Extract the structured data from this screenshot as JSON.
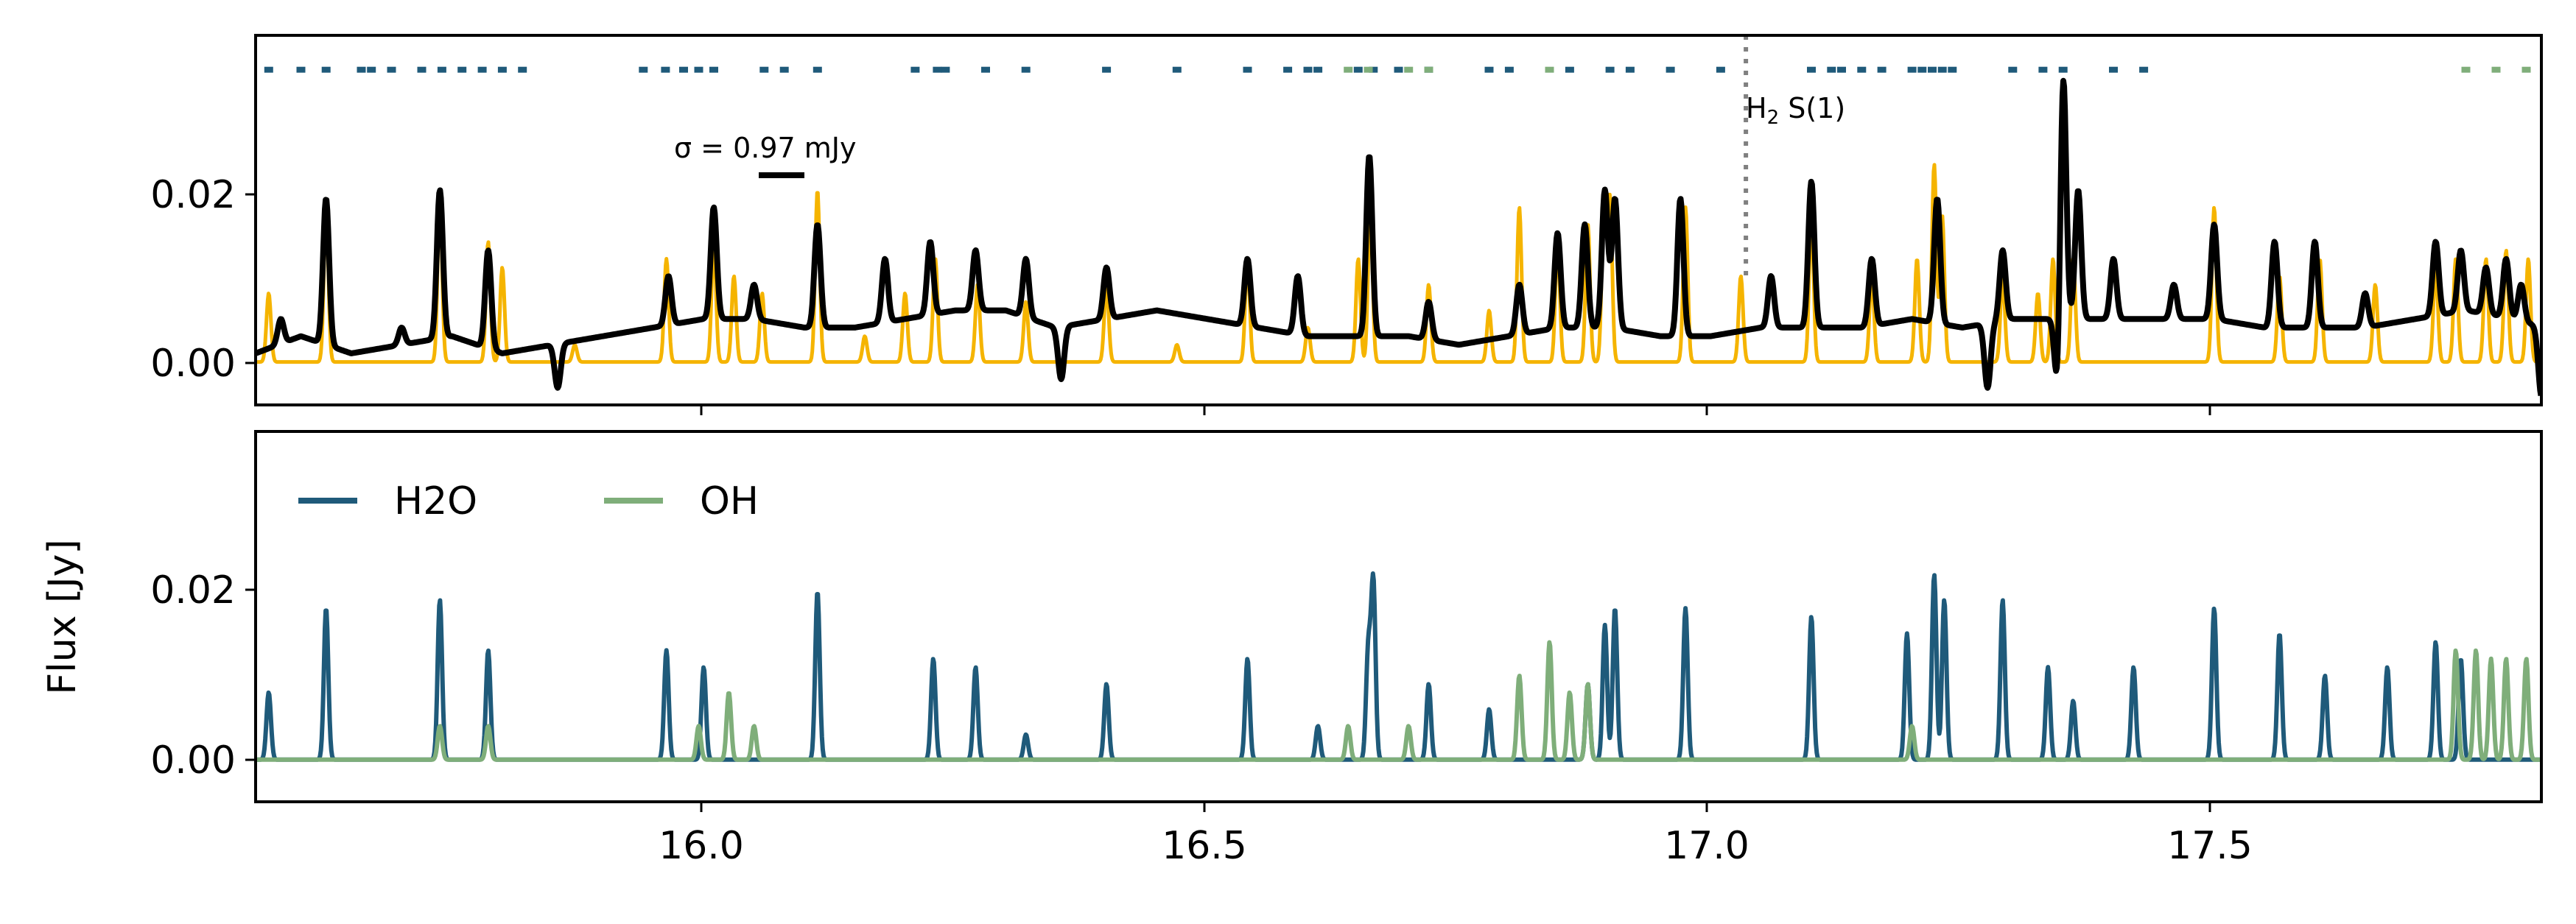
{
  "chart_data": [
    {
      "panel": "top",
      "type": "line",
      "xlim": [
        15.555,
        17.825
      ],
      "ylim": [
        -0.005,
        0.038
      ],
      "yticks": [
        0.0,
        0.02
      ],
      "ytick_labels": [
        "0.00",
        "0.02"
      ],
      "xticks": [
        16.0,
        16.5,
        17.0,
        17.5
      ],
      "grid": false,
      "series": [
        {
          "role": "model",
          "color": "#f5b400",
          "peaks": [
            [
              15.568,
              0.008
            ],
            [
              15.625,
              0.018
            ],
            [
              15.738,
              0.019
            ],
            [
              15.786,
              0.014
            ],
            [
              15.8,
              0.011
            ],
            [
              15.872,
              0.002
            ],
            [
              15.963,
              0.012
            ],
            [
              16.01,
              0.014
            ],
            [
              16.03,
              0.01
            ],
            [
              16.058,
              0.008
            ],
            [
              16.113,
              0.02
            ],
            [
              16.16,
              0.003
            ],
            [
              16.2,
              0.008
            ],
            [
              16.23,
              0.012
            ],
            [
              16.272,
              0.009
            ],
            [
              16.32,
              0.007
            ],
            [
              16.4,
              0.009
            ],
            [
              16.47,
              0.002
            ],
            [
              16.54,
              0.012
            ],
            [
              16.6,
              0.004
            ],
            [
              16.65,
              0.012
            ],
            [
              16.662,
              0.018
            ],
            [
              16.72,
              0.009
            ],
            [
              16.78,
              0.006
            ],
            [
              16.81,
              0.018
            ],
            [
              16.848,
              0.014
            ],
            [
              16.878,
              0.016
            ],
            [
              16.894,
              0.018
            ],
            [
              16.9,
              0.019
            ],
            [
              16.975,
              0.018
            ],
            [
              17.03,
              0.01
            ],
            [
              17.1,
              0.017
            ],
            [
              17.16,
              0.01
            ],
            [
              17.205,
              0.012
            ],
            [
              17.222,
              0.023
            ],
            [
              17.23,
              0.017
            ],
            [
              17.29,
              0.01
            ],
            [
              17.325,
              0.008
            ],
            [
              17.34,
              0.012
            ],
            [
              17.36,
              0.012
            ],
            [
              17.5,
              0.018
            ],
            [
              17.565,
              0.01
            ],
            [
              17.605,
              0.012
            ],
            [
              17.66,
              0.009
            ],
            [
              17.72,
              0.011
            ],
            [
              17.74,
              0.012
            ],
            [
              17.77,
              0.012
            ],
            [
              17.79,
              0.013
            ],
            [
              17.812,
              0.012
            ]
          ]
        },
        {
          "role": "data",
          "color": "#000000",
          "baseline": [
            [
              15.555,
              0.001
            ],
            [
              15.6,
              0.003
            ],
            [
              15.65,
              0.001
            ],
            [
              15.7,
              0.002
            ],
            [
              15.75,
              0.003
            ],
            [
              15.8,
              0.001
            ],
            [
              15.85,
              0.002
            ],
            [
              15.9,
              0.003
            ],
            [
              15.95,
              0.004
            ],
            [
              16.0,
              0.005
            ],
            [
              16.05,
              0.005
            ],
            [
              16.1,
              0.004
            ],
            [
              16.15,
              0.004
            ],
            [
              16.2,
              0.005
            ],
            [
              16.25,
              0.006
            ],
            [
              16.3,
              0.006
            ],
            [
              16.35,
              0.004
            ],
            [
              16.4,
              0.005
            ],
            [
              16.45,
              0.006
            ],
            [
              16.5,
              0.005
            ],
            [
              16.55,
              0.004
            ],
            [
              16.6,
              0.003
            ],
            [
              16.65,
              0.003
            ],
            [
              16.7,
              0.003
            ],
            [
              16.75,
              0.002
            ],
            [
              16.8,
              0.003
            ],
            [
              16.85,
              0.004
            ],
            [
              16.9,
              0.004
            ],
            [
              16.95,
              0.003
            ],
            [
              17.0,
              0.003
            ],
            [
              17.05,
              0.004
            ],
            [
              17.1,
              0.004
            ],
            [
              17.15,
              0.004
            ],
            [
              17.2,
              0.005
            ],
            [
              17.25,
              0.004
            ],
            [
              17.3,
              0.005
            ],
            [
              17.35,
              0.005
            ],
            [
              17.4,
              0.005
            ],
            [
              17.45,
              0.005
            ],
            [
              17.5,
              0.005
            ],
            [
              17.55,
              0.004
            ],
            [
              17.6,
              0.004
            ],
            [
              17.65,
              0.004
            ],
            [
              17.7,
              0.005
            ],
            [
              17.75,
              0.006
            ],
            [
              17.8,
              0.005
            ],
            [
              17.825,
              0.004
            ]
          ],
          "peaks": [
            [
              15.58,
              0.005
            ],
            [
              15.625,
              0.019
            ],
            [
              15.7,
              0.004
            ],
            [
              15.738,
              0.02
            ],
            [
              15.786,
              0.013
            ],
            [
              15.965,
              0.01
            ],
            [
              16.01,
              0.018
            ],
            [
              16.05,
              0.009
            ],
            [
              16.113,
              0.016
            ],
            [
              16.18,
              0.012
            ],
            [
              16.225,
              0.014
            ],
            [
              16.27,
              0.013
            ],
            [
              16.32,
              0.012
            ],
            [
              16.4,
              0.011
            ],
            [
              16.54,
              0.012
            ],
            [
              16.59,
              0.01
            ],
            [
              16.661,
              0.024
            ],
            [
              16.72,
              0.007
            ],
            [
              16.81,
              0.009
            ],
            [
              16.848,
              0.015
            ],
            [
              16.875,
              0.016
            ],
            [
              16.895,
              0.02
            ],
            [
              16.905,
              0.019
            ],
            [
              16.97,
              0.019
            ],
            [
              17.06,
              0.01
            ],
            [
              17.1,
              0.021
            ],
            [
              17.16,
              0.012
            ],
            [
              17.225,
              0.019
            ],
            [
              17.29,
              0.013
            ],
            [
              17.35,
              0.035
            ],
            [
              17.365,
              0.02
            ],
            [
              17.4,
              0.012
            ],
            [
              17.46,
              0.009
            ],
            [
              17.5,
              0.016
            ],
            [
              17.56,
              0.014
            ],
            [
              17.6,
              0.014
            ],
            [
              17.65,
              0.008
            ],
            [
              17.72,
              0.014
            ],
            [
              17.745,
              0.013
            ],
            [
              17.77,
              0.011
            ],
            [
              17.79,
              0.012
            ],
            [
              17.805,
              0.009
            ]
          ],
          "dips": [
            [
              15.855,
              -0.003
            ],
            [
              16.355,
              -0.002
            ],
            [
              17.275,
              -0.003
            ],
            [
              17.345,
              -0.005
            ],
            [
              17.825,
              -0.004
            ]
          ]
        }
      ],
      "line_markers": [
        {
          "name": "H2O",
          "color": "#1f5a7a",
          "y": 0.034,
          "x": [
            15.568,
            15.6,
            15.625,
            15.66,
            15.67,
            15.69,
            15.72,
            15.74,
            15.76,
            15.78,
            15.8,
            15.82,
            15.94,
            15.962,
            15.98,
            15.995,
            16.01,
            16.06,
            16.08,
            16.113,
            16.21,
            16.232,
            16.24,
            16.28,
            16.32,
            16.4,
            16.47,
            16.54,
            16.58,
            16.6,
            16.61,
            16.65,
            16.665,
            16.69,
            16.72,
            16.78,
            16.8,
            16.86,
            16.9,
            16.92,
            16.96,
            17.01,
            17.1,
            17.12,
            17.13,
            17.15,
            17.17,
            17.2,
            17.21,
            17.22,
            17.23,
            17.24,
            17.3,
            17.33,
            17.35,
            17.4,
            17.43
          ]
        },
        {
          "name": "OH",
          "color": "#7fae7a",
          "y": 0.034,
          "x": [
            16.64,
            16.66,
            16.7,
            16.72,
            16.84,
            17.75,
            17.78,
            17.81
          ]
        }
      ],
      "annotations": [
        {
          "text_main": "σ = 0.97 mJy",
          "x": 16.065,
          "y": 0.0225
        },
        {
          "text_main": "H",
          "subscript": "2",
          "text_after": " S(1)",
          "x": 17.04,
          "y": 0.0335
        }
      ],
      "vline": {
        "x": 17.035,
        "style": "dotted",
        "color": "#808080"
      }
    },
    {
      "panel": "bottom",
      "type": "line",
      "ylabel": "Flux [Jy]",
      "xlim": [
        15.555,
        17.825
      ],
      "ylim": [
        -0.005,
        0.039
      ],
      "yticks": [
        0.0,
        0.02
      ],
      "ytick_labels": [
        "0.00",
        "0.02"
      ],
      "xticks": [
        16.0,
        16.5,
        17.0,
        17.5
      ],
      "xtick_labels": [
        "16.0",
        "16.5",
        "17.0",
        "17.5"
      ],
      "legend": "upper left",
      "grid": false,
      "series": [
        {
          "name": "H2O",
          "color": "#1f5a7a",
          "peaks": [
            [
              15.568,
              0.008
            ],
            [
              15.625,
              0.018
            ],
            [
              15.738,
              0.019
            ],
            [
              15.786,
              0.013
            ],
            [
              15.963,
              0.013
            ],
            [
              16.0,
              0.011
            ],
            [
              16.113,
              0.02
            ],
            [
              16.228,
              0.012
            ],
            [
              16.27,
              0.011
            ],
            [
              16.32,
              0.003
            ],
            [
              16.4,
              0.009
            ],
            [
              16.54,
              0.012
            ],
            [
              16.61,
              0.004
            ],
            [
              16.66,
              0.013
            ],
            [
              16.665,
              0.021
            ],
            [
              16.72,
              0.009
            ],
            [
              16.78,
              0.006
            ],
            [
              16.878,
              0.009
            ],
            [
              16.895,
              0.016
            ],
            [
              16.905,
              0.018
            ],
            [
              16.975,
              0.018
            ],
            [
              17.1,
              0.017
            ],
            [
              17.195,
              0.015
            ],
            [
              17.222,
              0.022
            ],
            [
              17.232,
              0.019
            ],
            [
              17.29,
              0.019
            ],
            [
              17.335,
              0.011
            ],
            [
              17.36,
              0.007
            ],
            [
              17.42,
              0.011
            ],
            [
              17.5,
              0.018
            ],
            [
              17.565,
              0.015
            ],
            [
              17.61,
              0.01
            ],
            [
              17.672,
              0.011
            ],
            [
              17.72,
              0.014
            ],
            [
              17.745,
              0.012
            ]
          ]
        },
        {
          "name": "OH",
          "color": "#7fae7a",
          "peaks": [
            [
              15.738,
              0.004
            ],
            [
              15.786,
              0.004
            ],
            [
              15.995,
              0.004
            ],
            [
              16.025,
              0.008
            ],
            [
              16.05,
              0.004
            ],
            [
              16.64,
              0.004
            ],
            [
              16.7,
              0.004
            ],
            [
              16.81,
              0.01
            ],
            [
              16.84,
              0.014
            ],
            [
              16.86,
              0.008
            ],
            [
              16.878,
              0.009
            ],
            [
              17.2,
              0.004
            ],
            [
              17.74,
              0.013
            ],
            [
              17.76,
              0.013
            ],
            [
              17.775,
              0.012
            ],
            [
              17.79,
              0.012
            ],
            [
              17.81,
              0.012
            ]
          ]
        }
      ]
    }
  ]
}
